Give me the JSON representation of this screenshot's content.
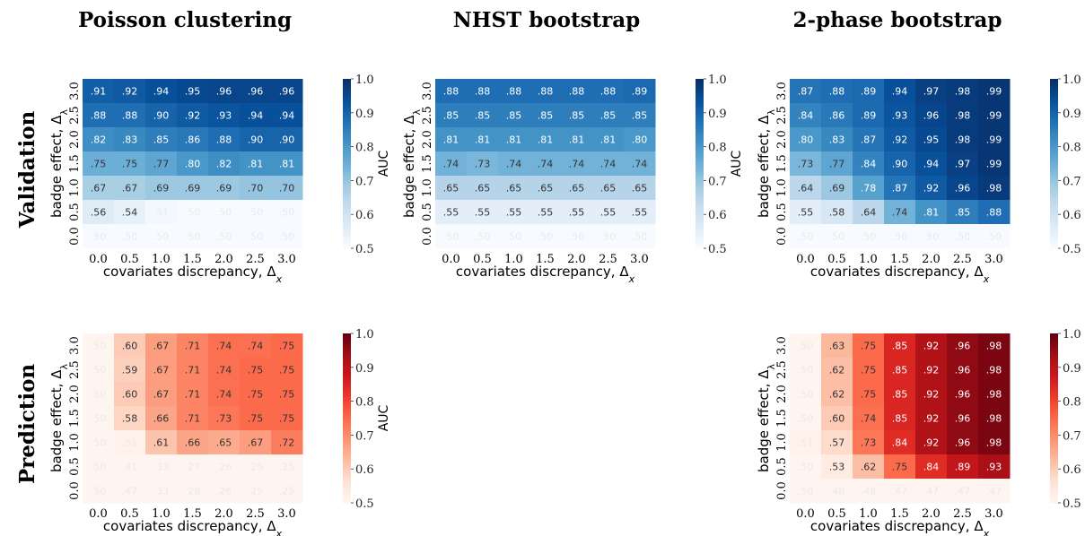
{
  "columns": [
    "Poisson clustering",
    "NHST bootstrap",
    "2-phase bootstrap"
  ],
  "rows": [
    "Validation",
    "Prediction"
  ],
  "colorbar": {
    "label": "AUC",
    "ticks": [
      "1.0",
      "0.9",
      "0.8",
      "0.7",
      "0.6",
      "0.5"
    ]
  },
  "colors": {
    "validation_cmap": "Blues",
    "prediction_cmap": "Reds"
  },
  "chart_data": [
    {
      "type": "heatmap",
      "panel": "Poisson clustering / Validation",
      "cmap": "Blues",
      "xlabel": "covariates discrepancy, Δx",
      "ylabel": "badge effect, Δλ",
      "x": [
        "0.0",
        "0.5",
        "1.0",
        "1.5",
        "2.0",
        "2.5",
        "3.0"
      ],
      "y": [
        "3.0",
        "2.5",
        "2.0",
        "1.5",
        "1.0",
        "0.5",
        "0.0"
      ],
      "values": [
        [
          0.91,
          0.92,
          0.94,
          0.95,
          0.96,
          0.96,
          0.96
        ],
        [
          0.88,
          0.88,
          0.9,
          0.92,
          0.93,
          0.94,
          0.94
        ],
        [
          0.82,
          0.83,
          0.85,
          0.86,
          0.88,
          0.9,
          0.9
        ],
        [
          0.75,
          0.75,
          0.77,
          0.8,
          0.82,
          0.81,
          0.81
        ],
        [
          0.67,
          0.67,
          0.69,
          0.69,
          0.69,
          0.7,
          0.7
        ],
        [
          0.56,
          0.54,
          0.51,
          0.5,
          0.5,
          0.5,
          0.5
        ],
        [
          0.5,
          0.5,
          0.5,
          0.5,
          0.5,
          0.5,
          0.5
        ]
      ],
      "vmin": 0.5,
      "vmax": 1.0
    },
    {
      "type": "heatmap",
      "panel": "NHST bootstrap / Validation",
      "cmap": "Blues",
      "xlabel": "covariates discrepancy, Δx",
      "ylabel": "badge effect, Δλ",
      "x": [
        "0.0",
        "0.5",
        "1.0",
        "1.5",
        "2.0",
        "2.5",
        "3.0"
      ],
      "y": [
        "3.0",
        "2.5",
        "2.0",
        "1.5",
        "1.0",
        "0.5",
        "0.0"
      ],
      "values": [
        [
          0.88,
          0.88,
          0.88,
          0.88,
          0.88,
          0.88,
          0.89
        ],
        [
          0.85,
          0.85,
          0.85,
          0.85,
          0.85,
          0.85,
          0.85
        ],
        [
          0.81,
          0.81,
          0.81,
          0.81,
          0.81,
          0.81,
          0.8
        ],
        [
          0.74,
          0.73,
          0.74,
          0.74,
          0.74,
          0.74,
          0.74
        ],
        [
          0.65,
          0.65,
          0.65,
          0.65,
          0.65,
          0.65,
          0.65
        ],
        [
          0.55,
          0.55,
          0.55,
          0.55,
          0.55,
          0.55,
          0.55
        ],
        [
          0.5,
          0.5,
          0.5,
          0.5,
          0.5,
          0.5,
          0.5
        ]
      ],
      "vmin": 0.5,
      "vmax": 1.0
    },
    {
      "type": "heatmap",
      "panel": "2-phase bootstrap / Validation",
      "cmap": "Blues",
      "xlabel": "covariates discrepancy, Δx",
      "ylabel": "badge effect, Δλ",
      "x": [
        "0.0",
        "0.5",
        "1.0",
        "1.5",
        "2.0",
        "2.5",
        "3.0"
      ],
      "y": [
        "3.0",
        "2.5",
        "2.0",
        "1.5",
        "1.0",
        "0.5",
        "0.0"
      ],
      "values": [
        [
          0.87,
          0.88,
          0.89,
          0.94,
          0.97,
          0.98,
          0.99
        ],
        [
          0.84,
          0.86,
          0.89,
          0.93,
          0.96,
          0.98,
          0.99
        ],
        [
          0.8,
          0.83,
          0.87,
          0.92,
          0.95,
          0.98,
          0.99
        ],
        [
          0.73,
          0.77,
          0.84,
          0.9,
          0.94,
          0.97,
          0.99
        ],
        [
          0.64,
          0.69,
          0.78,
          0.87,
          0.92,
          0.96,
          0.98
        ],
        [
          0.55,
          0.58,
          0.64,
          0.74,
          0.81,
          0.85,
          0.88
        ],
        [
          0.5,
          0.5,
          0.5,
          0.5,
          0.5,
          0.5,
          0.5
        ]
      ],
      "vmin": 0.5,
      "vmax": 1.0
    },
    {
      "type": "heatmap",
      "panel": "Poisson clustering / Prediction",
      "cmap": "Reds",
      "xlabel": "covariates discrepancy, Δx",
      "ylabel": "badge effect, Δλ",
      "x": [
        "0.0",
        "0.5",
        "1.0",
        "1.5",
        "2.0",
        "2.5",
        "3.0"
      ],
      "y": [
        "3.0",
        "2.5",
        "2.0",
        "1.5",
        "1.0",
        "0.5",
        "0.0"
      ],
      "values": [
        [
          0.5,
          0.6,
          0.67,
          0.71,
          0.74,
          0.74,
          0.75
        ],
        [
          0.5,
          0.59,
          0.67,
          0.71,
          0.74,
          0.75,
          0.75
        ],
        [
          0.5,
          0.6,
          0.67,
          0.71,
          0.74,
          0.75,
          0.75
        ],
        [
          0.5,
          0.58,
          0.66,
          0.71,
          0.73,
          0.75,
          0.75
        ],
        [
          0.5,
          0.51,
          0.61,
          0.66,
          0.65,
          0.67,
          0.72
        ],
        [
          0.5,
          0.41,
          0.33,
          0.27,
          0.26,
          0.25,
          0.25
        ],
        [
          0.5,
          0.47,
          0.33,
          0.28,
          0.26,
          0.25,
          0.25
        ]
      ],
      "vmin": 0.5,
      "vmax": 1.0
    },
    {
      "type": "heatmap",
      "panel": "2-phase bootstrap / Prediction",
      "cmap": "Reds",
      "xlabel": "covariates discrepancy, Δx",
      "ylabel": "badge effect, Δλ",
      "x": [
        "0.0",
        "0.5",
        "1.0",
        "1.5",
        "2.0",
        "2.5",
        "3.0"
      ],
      "y": [
        "3.0",
        "2.5",
        "2.0",
        "1.5",
        "1.0",
        "0.5",
        "0.0"
      ],
      "values": [
        [
          0.5,
          0.63,
          0.75,
          0.85,
          0.92,
          0.96,
          0.98
        ],
        [
          0.5,
          0.62,
          0.75,
          0.85,
          0.92,
          0.96,
          0.98
        ],
        [
          0.5,
          0.62,
          0.75,
          0.85,
          0.92,
          0.96,
          0.98
        ],
        [
          0.5,
          0.6,
          0.74,
          0.85,
          0.92,
          0.96,
          0.98
        ],
        [
          0.51,
          0.57,
          0.73,
          0.84,
          0.92,
          0.96,
          0.98
        ],
        [
          0.5,
          0.53,
          0.62,
          0.75,
          0.84,
          0.89,
          0.93
        ],
        [
          0.5,
          0.48,
          0.48,
          0.47,
          0.47,
          0.47,
          0.47
        ]
      ],
      "vmin": 0.5,
      "vmax": 1.0
    }
  ]
}
